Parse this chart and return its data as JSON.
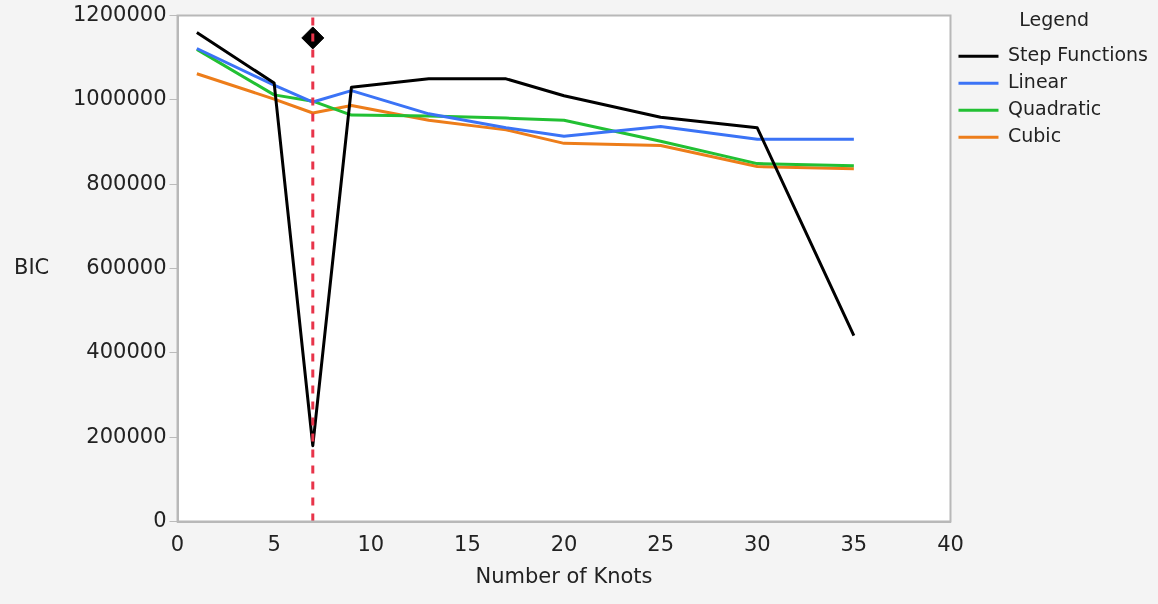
{
  "chart_data": {
    "type": "line",
    "xlabel": "Number of Knots",
    "ylabel": "BIC",
    "legend_title": "Legend",
    "x": [
      1,
      5,
      7,
      9,
      13,
      17,
      20,
      25,
      30,
      35
    ],
    "series": [
      {
        "name": "Step Functions",
        "color": "#000000",
        "values": [
          1160000,
          1040000,
          180000,
          1030000,
          1050000,
          1050000,
          1010000,
          959000,
          934000,
          441000
        ]
      },
      {
        "name": "Linear",
        "color": "#3b73f6",
        "values": [
          1122000,
          1035000,
          995000,
          1022000,
          967000,
          934000,
          914000,
          937000,
          907000,
          907000
        ]
      },
      {
        "name": "Quadratic",
        "color": "#22c033",
        "values": [
          1120000,
          1012000,
          997000,
          964000,
          962000,
          957000,
          952000,
          902000,
          849000,
          844000
        ]
      },
      {
        "name": "Cubic",
        "color": "#ed7d1a",
        "values": [
          1062000,
          1002000,
          969000,
          987000,
          952000,
          929000,
          897000,
          892000,
          842000,
          837000
        ]
      },
      {
        "type": "scatter",
        "color": "#000000",
        "marker": "diamond",
        "x": [
          7
        ],
        "values": [
          1147000
        ]
      }
    ],
    "xlim": [
      0,
      40
    ],
    "xticks": [
      0,
      5,
      10,
      15,
      20,
      25,
      30,
      35,
      40
    ],
    "ylim": [
      0,
      1200000
    ],
    "yticks": [
      0,
      200000,
      400000,
      600000,
      800000,
      1000000,
      1200000
    ],
    "ref_lines": [
      {
        "axis": "x",
        "value": 7,
        "color": "#e8344a",
        "line_style": "dashed"
      }
    ],
    "legend": "top right",
    "grid": false,
    "marker": "none",
    "line_style": "solid"
  }
}
